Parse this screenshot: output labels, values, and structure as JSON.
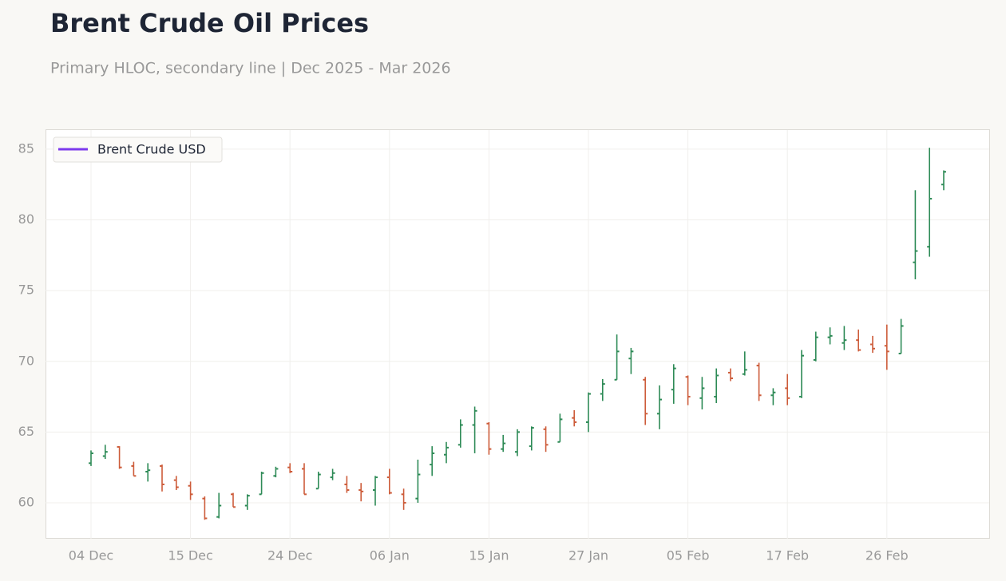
{
  "chart_data": {
    "type": "ohlc",
    "title": "Brent Crude Oil Prices",
    "subtitle": "Primary HLOC, secondary line | Dec 2025 - Mar 2026",
    "categories": [
      "04 Dec",
      null,
      null,
      null,
      null,
      null,
      null,
      "15 Dec",
      null,
      null,
      null,
      null,
      null,
      null,
      "24 Dec",
      null,
      null,
      null,
      null,
      null,
      null,
      "06 Jan",
      null,
      null,
      null,
      null,
      null,
      null,
      "15 Jan",
      null,
      null,
      null,
      null,
      null,
      null,
      "27 Jan",
      null,
      null,
      null,
      null,
      null,
      null,
      "05 Feb",
      null,
      null,
      null,
      null,
      null,
      null,
      "17 Feb",
      null,
      null,
      null,
      null,
      null,
      null,
      "26 Feb",
      null,
      null,
      null,
      null
    ],
    "open": [
      62.8,
      63.3,
      63.95,
      62.6,
      62.2,
      62.6,
      61.6,
      61.2,
      60.3,
      59.0,
      60.6,
      59.8,
      60.6,
      61.9,
      62.5,
      62.4,
      61.0,
      61.8,
      61.3,
      60.9,
      60.9,
      61.8,
      60.6,
      60.3,
      62.7,
      63.4,
      64.1,
      65.5,
      65.6,
      63.8,
      63.6,
      64.0,
      65.2,
      64.3,
      66.0,
      65.7,
      67.7,
      68.7,
      70.2,
      68.7,
      66.3,
      68.0,
      68.9,
      67.4,
      67.5,
      69.2,
      69.1,
      69.7,
      67.6,
      68.1,
      67.5,
      70.1,
      71.7,
      71.3,
      71.5,
      71.2,
      71.1,
      70.55,
      77.0,
      78.1,
      82.5
    ],
    "high": [
      63.7,
      64.1,
      64.0,
      62.9,
      62.8,
      62.7,
      61.9,
      61.5,
      60.45,
      60.7,
      60.7,
      60.6,
      62.2,
      62.55,
      62.8,
      62.8,
      62.2,
      62.4,
      61.9,
      61.4,
      61.9,
      62.4,
      61.0,
      63.05,
      64.0,
      64.3,
      65.9,
      66.8,
      65.7,
      64.8,
      65.2,
      65.4,
      65.4,
      66.3,
      66.55,
      67.8,
      68.75,
      71.9,
      70.95,
      68.9,
      68.3,
      69.8,
      69.0,
      68.9,
      69.5,
      69.5,
      70.7,
      69.9,
      68.1,
      69.1,
      70.8,
      72.1,
      72.4,
      72.5,
      72.25,
      71.8,
      72.6,
      73.0,
      82.1,
      85.1,
      83.5
    ],
    "low": [
      62.6,
      63.1,
      62.4,
      61.9,
      61.5,
      60.8,
      60.9,
      60.2,
      58.8,
      58.9,
      59.7,
      59.5,
      60.6,
      61.8,
      62.1,
      60.6,
      61.0,
      61.6,
      60.7,
      60.1,
      59.8,
      60.6,
      59.5,
      60.0,
      61.9,
      62.8,
      63.9,
      63.5,
      63.4,
      63.6,
      63.3,
      63.7,
      63.6,
      64.3,
      65.4,
      65.0,
      67.2,
      68.7,
      69.1,
      65.5,
      65.2,
      67.0,
      66.9,
      66.6,
      67.05,
      68.6,
      69.0,
      67.2,
      66.9,
      66.9,
      67.4,
      70.0,
      71.2,
      70.8,
      70.7,
      70.6,
      69.4,
      70.55,
      75.8,
      77.4,
      82.1
    ],
    "close": [
      63.5,
      63.6,
      62.5,
      61.9,
      62.3,
      61.3,
      61.1,
      60.6,
      58.9,
      59.8,
      59.7,
      60.5,
      62.1,
      62.4,
      62.2,
      60.6,
      62.0,
      62.1,
      60.9,
      60.8,
      61.8,
      60.7,
      60.0,
      62.0,
      63.5,
      63.9,
      65.5,
      66.5,
      63.8,
      64.2,
      65.0,
      65.3,
      64.1,
      65.9,
      65.7,
      67.7,
      68.4,
      70.7,
      70.7,
      66.3,
      67.3,
      69.5,
      67.5,
      68.1,
      69.0,
      68.8,
      69.4,
      67.6,
      67.8,
      67.4,
      70.4,
      71.7,
      71.8,
      71.5,
      70.8,
      70.9,
      70.7,
      72.5,
      77.8,
      81.5,
      83.4
    ],
    "up_color": "#2e8b57",
    "down_color": "#cd5c3a",
    "legend": {
      "label": "Brent Crude USD",
      "color": "#7c3aed",
      "loc": "upper left"
    },
    "ylim": [
      57.46,
      86.35
    ],
    "yticks": [
      60,
      65,
      70,
      75,
      80,
      85
    ],
    "grid": true
  }
}
